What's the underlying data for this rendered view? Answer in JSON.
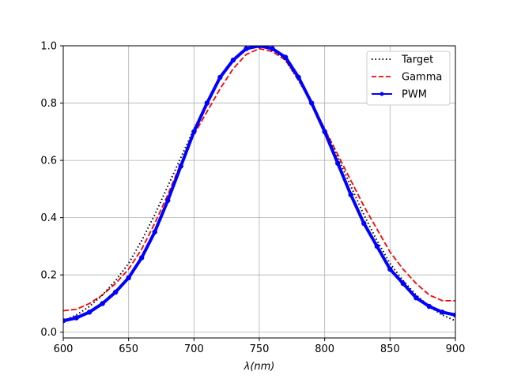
{
  "chart_data": {
    "type": "line",
    "xlabel": "λ(nm)",
    "ylabel": "",
    "title": "",
    "xlim": [
      600,
      900
    ],
    "ylim": [
      -0.02,
      1.0
    ],
    "x_ticks": [
      600,
      650,
      700,
      750,
      800,
      850,
      900
    ],
    "y_ticks": [
      0.0,
      0.2,
      0.4,
      0.6,
      0.8,
      1.0
    ],
    "x_tick_labels": [
      "600",
      "650",
      "700",
      "750",
      "800",
      "850",
      "900"
    ],
    "y_tick_labels": [
      "0.0",
      "0.2",
      "0.4",
      "0.6",
      "0.8",
      "1.0"
    ],
    "grid": true,
    "legend_position": "top-right",
    "series": [
      {
        "name": "Target",
        "style": "dotted",
        "color": "#000000",
        "x": [
          600,
          610,
          620,
          630,
          640,
          650,
          660,
          670,
          680,
          690,
          700,
          710,
          720,
          730,
          740,
          750,
          760,
          770,
          780,
          790,
          800,
          810,
          820,
          830,
          840,
          850,
          860,
          870,
          880,
          890,
          900
        ],
        "y": [
          0.04,
          0.06,
          0.09,
          0.13,
          0.18,
          0.24,
          0.32,
          0.41,
          0.51,
          0.61,
          0.71,
          0.8,
          0.89,
          0.95,
          0.99,
          1.0,
          0.99,
          0.95,
          0.88,
          0.8,
          0.71,
          0.61,
          0.51,
          0.41,
          0.32,
          0.24,
          0.18,
          0.13,
          0.09,
          0.06,
          0.04
        ]
      },
      {
        "name": "Gamma",
        "style": "dashed",
        "color": "#ff0000",
        "x": [
          600,
          610,
          620,
          630,
          640,
          650,
          660,
          670,
          680,
          690,
          700,
          710,
          720,
          730,
          740,
          750,
          760,
          770,
          780,
          790,
          800,
          810,
          820,
          830,
          840,
          850,
          860,
          870,
          880,
          890,
          900
        ],
        "y": [
          0.075,
          0.08,
          0.1,
          0.13,
          0.17,
          0.22,
          0.29,
          0.38,
          0.48,
          0.59,
          0.69,
          0.77,
          0.85,
          0.92,
          0.97,
          0.99,
          0.98,
          0.95,
          0.88,
          0.8,
          0.71,
          0.62,
          0.53,
          0.44,
          0.36,
          0.28,
          0.22,
          0.17,
          0.13,
          0.11,
          0.11
        ]
      },
      {
        "name": "PWM",
        "style": "solid-dots",
        "color": "#0000ff",
        "x": [
          600,
          610,
          620,
          630,
          640,
          650,
          660,
          670,
          680,
          690,
          700,
          710,
          720,
          730,
          740,
          750,
          760,
          770,
          780,
          790,
          800,
          810,
          820,
          830,
          840,
          850,
          860,
          870,
          880,
          890,
          900
        ],
        "y": [
          0.04,
          0.05,
          0.07,
          0.1,
          0.14,
          0.19,
          0.26,
          0.35,
          0.46,
          0.58,
          0.7,
          0.8,
          0.89,
          0.95,
          0.99,
          1.0,
          0.99,
          0.96,
          0.89,
          0.8,
          0.7,
          0.59,
          0.48,
          0.38,
          0.3,
          0.22,
          0.17,
          0.12,
          0.09,
          0.07,
          0.06
        ]
      }
    ]
  }
}
